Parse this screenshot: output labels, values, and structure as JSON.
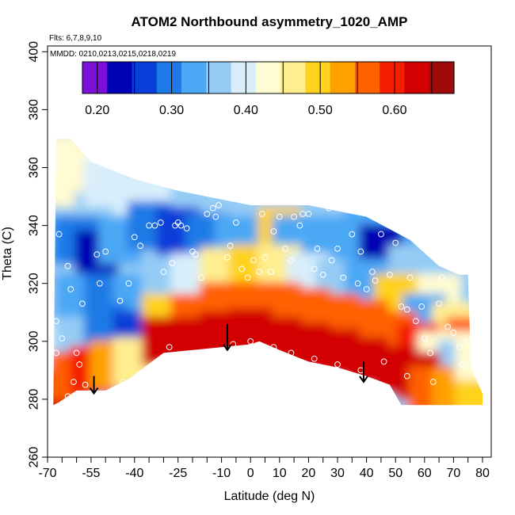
{
  "chart_data": {
    "type": "heatmap",
    "title": "ATOM2 Northbound asymmetry_1020_AMP",
    "flights_note": "Flts: 6,7,8,9,10",
    "dates_note": "MMDD: 0210,0213,0215,0218,0219",
    "xlabel": "Latitude (deg N)",
    "ylabel": "Theta (C)",
    "xlim": [
      -70,
      83
    ],
    "ylim": [
      260,
      402
    ],
    "x_ticks_major": [
      -70,
      -55,
      -40,
      -25,
      -10,
      0,
      10,
      20,
      30,
      40,
      50,
      60,
      70,
      80
    ],
    "x_tick_labels": [
      "-70",
      "-55",
      "-40",
      "-25",
      "-10",
      "0",
      "10",
      "20",
      "30",
      "40",
      "50",
      "60",
      "70",
      "80"
    ],
    "x_ticks_minor": [
      -65,
      -60,
      -50,
      -45,
      -35,
      -30,
      -20,
      -15,
      -5,
      5,
      15,
      25,
      35,
      45,
      55,
      65,
      75
    ],
    "y_ticks": [
      260,
      280,
      300,
      320,
      340,
      360,
      380,
      400
    ],
    "y_tick_labels": [
      "260",
      "280",
      "300",
      "320",
      "340",
      "360",
      "380",
      "400"
    ],
    "colorbar": {
      "min": 0.18,
      "max": 0.68,
      "tick_values": [
        0.2,
        0.3,
        0.4,
        0.5,
        0.6
      ],
      "tick_labels": [
        "0.20",
        "0.30",
        "0.40",
        "0.50",
        "0.60"
      ],
      "divisions": [
        0.2,
        0.25,
        0.3,
        0.35,
        0.4,
        0.45,
        0.5,
        0.55,
        0.6,
        0.65
      ],
      "colors": [
        "#7b10d8",
        "#0000b4",
        "#0a3ed8",
        "#1e7ae6",
        "#4ba8f5",
        "#94ccf5",
        "#d8eefb",
        "#fffbd2",
        "#ffee90",
        "#ffd21e",
        "#ffa000",
        "#ff6000",
        "#f51e00",
        "#d20000",
        "#a00a0a"
      ]
    },
    "grid": false,
    "region_top": [
      [
        -67,
        370
      ],
      [
        -62,
        370
      ],
      [
        -55,
        362
      ],
      [
        -40,
        356
      ],
      [
        -25,
        352
      ],
      [
        -10,
        349
      ],
      [
        0,
        347
      ],
      [
        20,
        347
      ],
      [
        40,
        343
      ],
      [
        55,
        335
      ],
      [
        65,
        326
      ],
      [
        72,
        323
      ],
      [
        75,
        323
      ]
    ],
    "region_bottom": [
      [
        -68,
        278
      ],
      [
        -66,
        279
      ],
      [
        -60,
        283
      ],
      [
        -55,
        283
      ],
      [
        -50,
        283
      ],
      [
        -42,
        287
      ],
      [
        -30,
        296
      ],
      [
        -20,
        297
      ],
      [
        -10,
        298
      ],
      [
        0,
        299
      ],
      [
        3,
        300
      ],
      [
        10,
        297
      ],
      [
        20,
        293
      ],
      [
        30,
        291
      ],
      [
        40,
        288
      ],
      [
        48,
        285
      ],
      [
        52,
        278
      ],
      [
        80,
        278
      ],
      [
        80,
        282
      ],
      [
        76,
        291
      ],
      [
        75,
        323
      ]
    ],
    "cells": [
      {
        "x": -68,
        "y": 355,
        "v": 0.42
      },
      {
        "x": -60,
        "y": 360,
        "v": 0.43
      },
      {
        "x": -50,
        "y": 355,
        "v": 0.41
      },
      {
        "x": -40,
        "y": 350,
        "v": 0.39
      },
      {
        "x": -30,
        "y": 348,
        "v": 0.38
      },
      {
        "x": -20,
        "y": 346,
        "v": 0.37
      },
      {
        "x": -10,
        "y": 345,
        "v": 0.36
      },
      {
        "x": 0,
        "y": 345,
        "v": 0.37
      },
      {
        "x": 10,
        "y": 344,
        "v": 0.36
      },
      {
        "x": 20,
        "y": 342,
        "v": 0.36
      },
      {
        "x": 30,
        "y": 340,
        "v": 0.35
      },
      {
        "x": 40,
        "y": 338,
        "v": 0.34
      },
      {
        "x": 50,
        "y": 333,
        "v": 0.33
      },
      {
        "x": 60,
        "y": 326,
        "v": 0.34
      },
      {
        "x": 70,
        "y": 322,
        "v": 0.37
      },
      {
        "x": -68,
        "y": 335,
        "v": 0.33
      },
      {
        "x": -60,
        "y": 335,
        "v": 0.3
      },
      {
        "x": -53,
        "y": 330,
        "v": 0.22
      },
      {
        "x": -45,
        "y": 335,
        "v": 0.32
      },
      {
        "x": -35,
        "y": 340,
        "v": 0.29
      },
      {
        "x": -25,
        "y": 338,
        "v": 0.26
      },
      {
        "x": -15,
        "y": 336,
        "v": 0.3
      },
      {
        "x": -5,
        "y": 335,
        "v": 0.33
      },
      {
        "x": 5,
        "y": 335,
        "v": 0.34
      },
      {
        "x": 10,
        "y": 338,
        "v": 0.5
      },
      {
        "x": 15,
        "y": 335,
        "v": 0.33
      },
      {
        "x": 25,
        "y": 335,
        "v": 0.32
      },
      {
        "x": 35,
        "y": 333,
        "v": 0.33
      },
      {
        "x": 45,
        "y": 332,
        "v": 0.24
      },
      {
        "x": 55,
        "y": 325,
        "v": 0.36
      },
      {
        "x": 65,
        "y": 315,
        "v": 0.42
      },
      {
        "x": -68,
        "y": 315,
        "v": 0.35
      },
      {
        "x": -60,
        "y": 315,
        "v": 0.33
      },
      {
        "x": -50,
        "y": 315,
        "v": 0.3
      },
      {
        "x": -40,
        "y": 315,
        "v": 0.32
      },
      {
        "x": -30,
        "y": 318,
        "v": 0.36
      },
      {
        "x": -20,
        "y": 322,
        "v": 0.4
      },
      {
        "x": -10,
        "y": 324,
        "v": 0.46
      },
      {
        "x": 0,
        "y": 325,
        "v": 0.48
      },
      {
        "x": 10,
        "y": 325,
        "v": 0.46
      },
      {
        "x": 20,
        "y": 322,
        "v": 0.4
      },
      {
        "x": 30,
        "y": 320,
        "v": 0.36
      },
      {
        "x": 40,
        "y": 320,
        "v": 0.34
      },
      {
        "x": 50,
        "y": 315,
        "v": 0.5
      },
      {
        "x": 60,
        "y": 308,
        "v": 0.33
      },
      {
        "x": 70,
        "y": 305,
        "v": 0.45
      },
      {
        "x": 75,
        "y": 300,
        "v": 0.55
      },
      {
        "x": -68,
        "y": 298,
        "v": 0.4
      },
      {
        "x": -60,
        "y": 300,
        "v": 0.36
      },
      {
        "x": -50,
        "y": 305,
        "v": 0.3
      },
      {
        "x": -40,
        "y": 302,
        "v": 0.25
      },
      {
        "x": -30,
        "y": 308,
        "v": 0.5
      },
      {
        "x": -20,
        "y": 308,
        "v": 0.55
      },
      {
        "x": -10,
        "y": 312,
        "v": 0.57
      },
      {
        "x": 0,
        "y": 312,
        "v": 0.56
      },
      {
        "x": 10,
        "y": 312,
        "v": 0.55
      },
      {
        "x": 20,
        "y": 310,
        "v": 0.55
      },
      {
        "x": 30,
        "y": 308,
        "v": 0.56
      },
      {
        "x": 40,
        "y": 306,
        "v": 0.57
      },
      {
        "x": 50,
        "y": 302,
        "v": 0.58
      },
      {
        "x": 58,
        "y": 298,
        "v": 0.6
      },
      {
        "x": 65,
        "y": 295,
        "v": 0.42
      },
      {
        "x": 72,
        "y": 292,
        "v": 0.35
      },
      {
        "x": -68,
        "y": 282,
        "v": 0.64
      },
      {
        "x": -62,
        "y": 288,
        "v": 0.58
      },
      {
        "x": -55,
        "y": 290,
        "v": 0.6
      },
      {
        "x": -48,
        "y": 292,
        "v": 0.52
      },
      {
        "x": -40,
        "y": 293,
        "v": 0.45
      },
      {
        "x": -30,
        "y": 300,
        "v": 0.62
      },
      {
        "x": -20,
        "y": 300,
        "v": 0.63
      },
      {
        "x": -10,
        "y": 302,
        "v": 0.64
      },
      {
        "x": 0,
        "y": 303,
        "v": 0.63
      },
      {
        "x": 10,
        "y": 300,
        "v": 0.64
      },
      {
        "x": 20,
        "y": 298,
        "v": 0.63
      },
      {
        "x": 30,
        "y": 296,
        "v": 0.63
      },
      {
        "x": 40,
        "y": 293,
        "v": 0.64
      },
      {
        "x": 50,
        "y": 290,
        "v": 0.63
      },
      {
        "x": 58,
        "y": 288,
        "v": 0.64
      },
      {
        "x": 62,
        "y": 283,
        "v": 0.58
      },
      {
        "x": 70,
        "y": 282,
        "v": 0.52
      },
      {
        "x": 78,
        "y": 282,
        "v": 0.48
      },
      {
        "x": 78,
        "y": 295,
        "v": 0.44
      },
      {
        "x": -66,
        "y": 363,
        "v": 0.44
      }
    ],
    "obs_points": [
      [
        -66,
        337
      ],
      [
        -63,
        326
      ],
      [
        -62,
        318
      ],
      [
        -58,
        313
      ],
      [
        -67,
        307
      ],
      [
        -65,
        301
      ],
      [
        -60,
        296
      ],
      [
        -67,
        296
      ],
      [
        -63,
        281
      ],
      [
        -61,
        286
      ],
      [
        -59,
        292
      ],
      [
        -53,
        330
      ],
      [
        -52,
        320
      ],
      [
        -50,
        331
      ],
      [
        -45,
        314
      ],
      [
        -42,
        320
      ],
      [
        -40,
        336
      ],
      [
        -38,
        333
      ],
      [
        -35,
        340
      ],
      [
        -33,
        340
      ],
      [
        -31,
        341
      ],
      [
        -30,
        324
      ],
      [
        -27,
        327
      ],
      [
        -26,
        340
      ],
      [
        -25,
        341
      ],
      [
        -24,
        340
      ],
      [
        -22,
        339
      ],
      [
        -20,
        331
      ],
      [
        -19,
        330
      ],
      [
        -17,
        322
      ],
      [
        -15,
        344
      ],
      [
        -13,
        346
      ],
      [
        -12,
        343
      ],
      [
        -11,
        347
      ],
      [
        -8,
        329
      ],
      [
        -7,
        333
      ],
      [
        -5,
        341
      ],
      [
        -3,
        325
      ],
      [
        -1,
        322
      ],
      [
        1,
        328
      ],
      [
        3,
        324
      ],
      [
        4,
        344
      ],
      [
        5,
        329
      ],
      [
        7,
        324
      ],
      [
        8,
        338
      ],
      [
        10,
        343
      ],
      [
        12,
        332
      ],
      [
        14,
        328
      ],
      [
        15,
        343
      ],
      [
        17,
        340
      ],
      [
        18,
        344
      ],
      [
        20,
        344
      ],
      [
        22,
        325
      ],
      [
        23,
        332
      ],
      [
        25,
        323
      ],
      [
        27,
        346
      ],
      [
        28,
        328
      ],
      [
        30,
        332
      ],
      [
        32,
        322
      ],
      [
        35,
        337
      ],
      [
        37,
        320
      ],
      [
        38,
        331
      ],
      [
        40,
        318
      ],
      [
        42,
        324
      ],
      [
        43,
        321
      ],
      [
        45,
        337
      ],
      [
        48,
        323
      ],
      [
        50,
        334
      ],
      [
        52,
        312
      ],
      [
        54,
        311
      ],
      [
        55,
        322
      ],
      [
        57,
        307
      ],
      [
        59,
        312
      ],
      [
        60,
        301
      ],
      [
        62,
        296
      ],
      [
        63,
        286
      ],
      [
        65,
        313
      ],
      [
        66,
        322
      ],
      [
        68,
        305
      ],
      [
        70,
        303
      ],
      [
        72,
        298
      ],
      [
        73,
        292
      ],
      [
        75,
        300
      ],
      [
        77,
        296
      ],
      [
        79,
        298
      ],
      [
        80,
        287
      ],
      [
        -44,
        286
      ],
      [
        -28,
        298
      ],
      [
        -6,
        299
      ],
      [
        0,
        300
      ],
      [
        8,
        298
      ],
      [
        14,
        296
      ],
      [
        22,
        294
      ],
      [
        30,
        292
      ],
      [
        38,
        290
      ],
      [
        46,
        293
      ],
      [
        54,
        288
      ],
      [
        -57,
        285
      ]
    ],
    "arrows": [
      {
        "x": -54,
        "y_from": 288,
        "y_to": 282
      },
      {
        "x": -8,
        "y_from": 306,
        "y_to": 297
      },
      {
        "x": 39,
        "y_from": 293,
        "y_to": 286
      }
    ]
  }
}
